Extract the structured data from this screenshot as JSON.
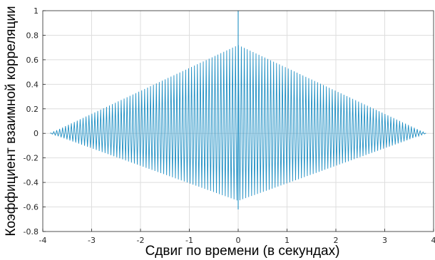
{
  "chart_data": {
    "type": "line",
    "title": "",
    "xlabel": "Сдвиг по времени (в секундах)",
    "ylabel": "Коэффициент взаимной корреляции",
    "xlim": [
      -4,
      4
    ],
    "ylim": [
      -0.8,
      1
    ],
    "xticks": [
      -4,
      -3,
      -2,
      -1,
      0,
      1,
      2,
      3,
      4
    ],
    "xtick_labels": [
      "-4",
      "-3",
      "-2",
      "-1",
      "0",
      "1",
      "2",
      "3",
      "4"
    ],
    "yticks": [
      -0.8,
      -0.6,
      -0.4,
      -0.2,
      0,
      0.2,
      0.4,
      0.6,
      0.8,
      1
    ],
    "ytick_labels": [
      "-0.8",
      "-0.6",
      "-0.4",
      "-0.2",
      "0",
      "0.2",
      "0.4",
      "0.6",
      "0.8",
      "1"
    ],
    "grid": true,
    "series_color": "#1f8fc4",
    "series": [
      {
        "x_range": [
          -3.85,
          3.85
        ],
        "upper_envelope": {
          "x": [
            -3.85,
            0,
            3.85
          ],
          "y": [
            0,
            0.72,
            0
          ]
        },
        "lower_envelope": {
          "x": [
            -3.85,
            0,
            3.85
          ],
          "y": [
            0,
            -0.55,
            0
          ]
        },
        "oscillation_period": 0.06,
        "peak": {
          "x": 0,
          "y": 1.0
        },
        "trough": {
          "x": 0,
          "y": -0.62
        }
      }
    ]
  }
}
